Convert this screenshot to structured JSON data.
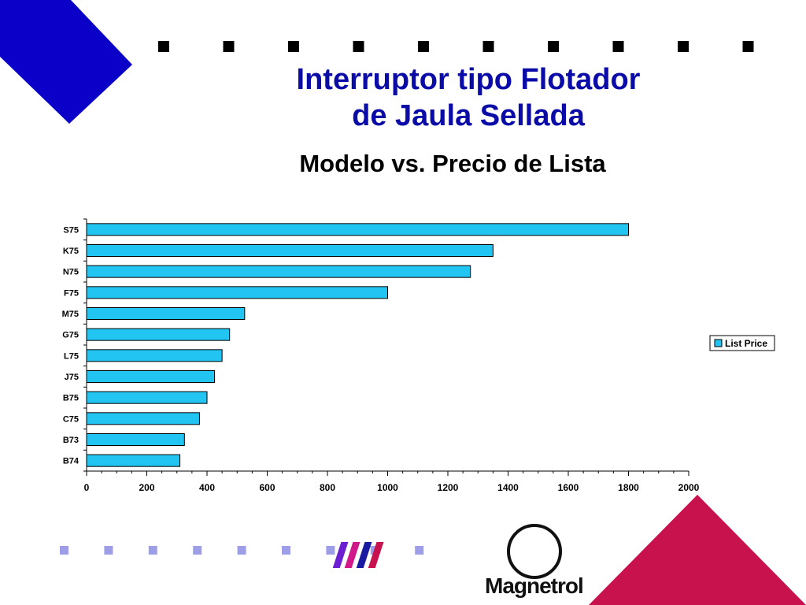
{
  "slide": {
    "title_line1": "Interruptor tipo Flotador",
    "title_line2": "de Jaula Sellada",
    "logo_text": "Magnetrol"
  },
  "colors": {
    "title": "#0b0ba8",
    "corner_blue": "#0a00c8",
    "corner_crimson": "#c8124e",
    "bar_fill": "#22c5f2",
    "dot_light": "#9e9ee8"
  },
  "chart_data": {
    "type": "bar",
    "orientation": "horizontal",
    "title": "Modelo vs. Precio de Lista",
    "categories": [
      "S75",
      "K75",
      "N75",
      "F75",
      "M75",
      "G75",
      "L75",
      "J75",
      "B75",
      "C75",
      "B73",
      "B74"
    ],
    "series": [
      {
        "name": "List Price",
        "values": [
          1800,
          1350,
          1275,
          1000,
          525,
          475,
          450,
          425,
          400,
          375,
          325,
          310
        ]
      }
    ],
    "xlim": [
      0,
      2000
    ],
    "xticks": [
      "0",
      "200",
      "400",
      "600",
      "800",
      "1000",
      "1200",
      "1400",
      "1600",
      "1800",
      "2000"
    ],
    "xlabel": "",
    "ylabel": "",
    "grid": false,
    "legend": "right"
  }
}
